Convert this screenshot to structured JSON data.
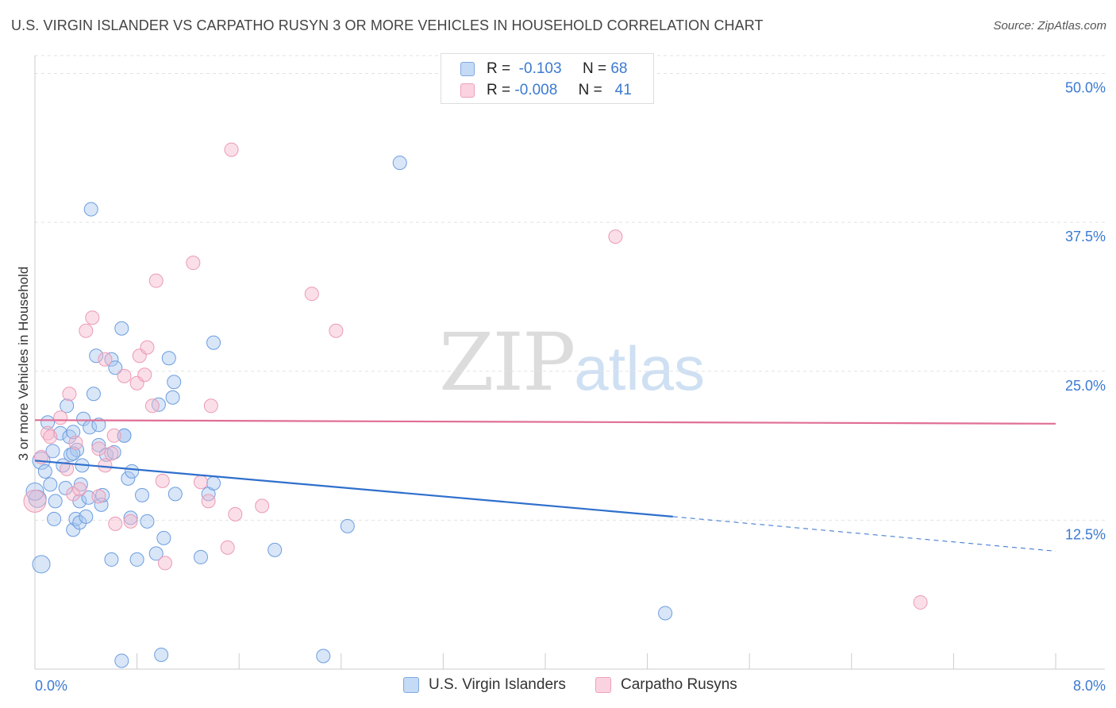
{
  "title": "U.S. VIRGIN ISLANDER VS CARPATHO RUSYN 3 OR MORE VEHICLES IN HOUSEHOLD CORRELATION CHART",
  "source": "Source: ZipAtlas.com",
  "watermark": {
    "zip": "ZIP",
    "atlas": "atlas"
  },
  "legend": {
    "rows": [
      {
        "r_label": "R =",
        "r_value": "-0.103",
        "n_label": "N =",
        "n_value": "68",
        "color": "#a9c8ef"
      },
      {
        "r_label": "R =",
        "r_value": "-0.008",
        "n_label": "N =",
        "n_value": "41",
        "color": "#f6b9cd"
      }
    ]
  },
  "bottom_legend": {
    "series1": "U.S. Virgin Islanders",
    "series2": "Carpatho Rusyns"
  },
  "chart_data": {
    "type": "scatter",
    "title": "U.S. VIRGIN ISLANDER VS CARPATHO RUSYN 3 OR MORE VEHICLES IN HOUSEHOLD CORRELATION CHART",
    "xlabel": "",
    "ylabel": "3 or more Vehicles in Household",
    "xlim": [
      0,
      8
    ],
    "ylim": [
      0,
      51.5
    ],
    "x_tick_labels": [
      "0.0%",
      "8.0%"
    ],
    "y_ticks": [
      12.5,
      25.0,
      37.5,
      50.0
    ],
    "y_tick_labels": [
      "12.5%",
      "25.0%",
      "37.5%",
      "50.0%"
    ],
    "grid": true,
    "legend_position": "top-center",
    "colors": {
      "series1": "#a9c8ef",
      "series1_line": "#2f6fcc",
      "series2": "#f6b9cd",
      "series2_line": "#e06f96"
    },
    "series": [
      {
        "name": "U.S. Virgin Islanders",
        "r": -0.103,
        "n": 68,
        "trend": {
          "x0": 0,
          "y0": 17.5,
          "x1": 5.0,
          "y1": 12.8,
          "dash_to_x": 8.0,
          "dash_to_y": 9.9
        },
        "points": [
          [
            0.02,
            14.3
          ],
          [
            0.05,
            8.8
          ],
          [
            0.05,
            17.5
          ],
          [
            0.08,
            16.6
          ],
          [
            0.1,
            20.7
          ],
          [
            0.12,
            15.5
          ],
          [
            0.14,
            18.3
          ],
          [
            0.15,
            12.6
          ],
          [
            0.16,
            14.1
          ],
          [
            0.2,
            19.8
          ],
          [
            0.22,
            17.1
          ],
          [
            0.24,
            15.2
          ],
          [
            0.25,
            22.1
          ],
          [
            0.27,
            19.5
          ],
          [
            0.28,
            18.0
          ],
          [
            0.3,
            11.7
          ],
          [
            0.3,
            19.9
          ],
          [
            0.32,
            12.6
          ],
          [
            0.33,
            18.4
          ],
          [
            0.35,
            14.1
          ],
          [
            0.35,
            12.3
          ],
          [
            0.36,
            15.5
          ],
          [
            0.37,
            17.1
          ],
          [
            0.38,
            21.0
          ],
          [
            0.4,
            12.8
          ],
          [
            0.42,
            14.4
          ],
          [
            0.43,
            20.3
          ],
          [
            0.44,
            38.6
          ],
          [
            0.46,
            23.1
          ],
          [
            0.48,
            26.3
          ],
          [
            0.5,
            20.5
          ],
          [
            0.5,
            18.8
          ],
          [
            0.52,
            13.8
          ],
          [
            0.53,
            14.6
          ],
          [
            0.56,
            18.0
          ],
          [
            0.6,
            9.2
          ],
          [
            0.6,
            26.0
          ],
          [
            0.62,
            18.2
          ],
          [
            0.63,
            25.3
          ],
          [
            0.68,
            0.7
          ],
          [
            0.68,
            28.6
          ],
          [
            0.7,
            19.6
          ],
          [
            0.73,
            16.0
          ],
          [
            0.75,
            12.7
          ],
          [
            0.76,
            16.6
          ],
          [
            0.8,
            9.2
          ],
          [
            0.84,
            14.6
          ],
          [
            0.88,
            12.4
          ],
          [
            0.95,
            9.7
          ],
          [
            0.97,
            22.2
          ],
          [
            0.99,
            1.2
          ],
          [
            1.01,
            11.0
          ],
          [
            1.05,
            26.1
          ],
          [
            1.08,
            22.8
          ],
          [
            1.09,
            24.1
          ],
          [
            1.1,
            14.7
          ],
          [
            1.3,
            9.4
          ],
          [
            1.36,
            14.7
          ],
          [
            1.4,
            27.4
          ],
          [
            1.4,
            15.6
          ],
          [
            1.88,
            10.0
          ],
          [
            2.26,
            1.1
          ],
          [
            2.45,
            12.0
          ],
          [
            2.86,
            42.5
          ],
          [
            4.94,
            4.7
          ],
          [
            0.0,
            14.9
          ],
          [
            0.3,
            18.1
          ],
          [
            0.7,
            19.6
          ]
        ]
      },
      {
        "name": "Carpatho Rusyns",
        "r": -0.008,
        "n": 41,
        "trend": {
          "x0": 0,
          "y0": 20.9,
          "x1": 8.0,
          "y1": 20.6
        },
        "points": [
          [
            0.0,
            14.1
          ],
          [
            0.05,
            17.8
          ],
          [
            0.1,
            19.8
          ],
          [
            0.12,
            19.5
          ],
          [
            0.2,
            21.1
          ],
          [
            0.25,
            16.8
          ],
          [
            0.27,
            23.1
          ],
          [
            0.3,
            14.7
          ],
          [
            0.32,
            19.0
          ],
          [
            0.35,
            15.1
          ],
          [
            0.4,
            28.4
          ],
          [
            0.45,
            29.5
          ],
          [
            0.5,
            18.5
          ],
          [
            0.5,
            14.5
          ],
          [
            0.55,
            26.0
          ],
          [
            0.55,
            17.1
          ],
          [
            0.6,
            18.1
          ],
          [
            0.62,
            19.6
          ],
          [
            0.63,
            12.2
          ],
          [
            0.7,
            24.6
          ],
          [
            0.75,
            12.4
          ],
          [
            0.8,
            24.0
          ],
          [
            0.82,
            26.3
          ],
          [
            0.86,
            24.7
          ],
          [
            0.88,
            27.0
          ],
          [
            0.92,
            22.1
          ],
          [
            0.95,
            32.6
          ],
          [
            1.0,
            15.8
          ],
          [
            1.02,
            8.9
          ],
          [
            1.24,
            34.1
          ],
          [
            1.3,
            15.7
          ],
          [
            1.36,
            14.1
          ],
          [
            1.38,
            22.1
          ],
          [
            1.51,
            10.2
          ],
          [
            1.54,
            43.6
          ],
          [
            1.57,
            13.0
          ],
          [
            1.78,
            13.7
          ],
          [
            2.17,
            31.5
          ],
          [
            2.36,
            28.4
          ],
          [
            4.55,
            36.3
          ],
          [
            6.94,
            5.6
          ]
        ]
      }
    ]
  }
}
